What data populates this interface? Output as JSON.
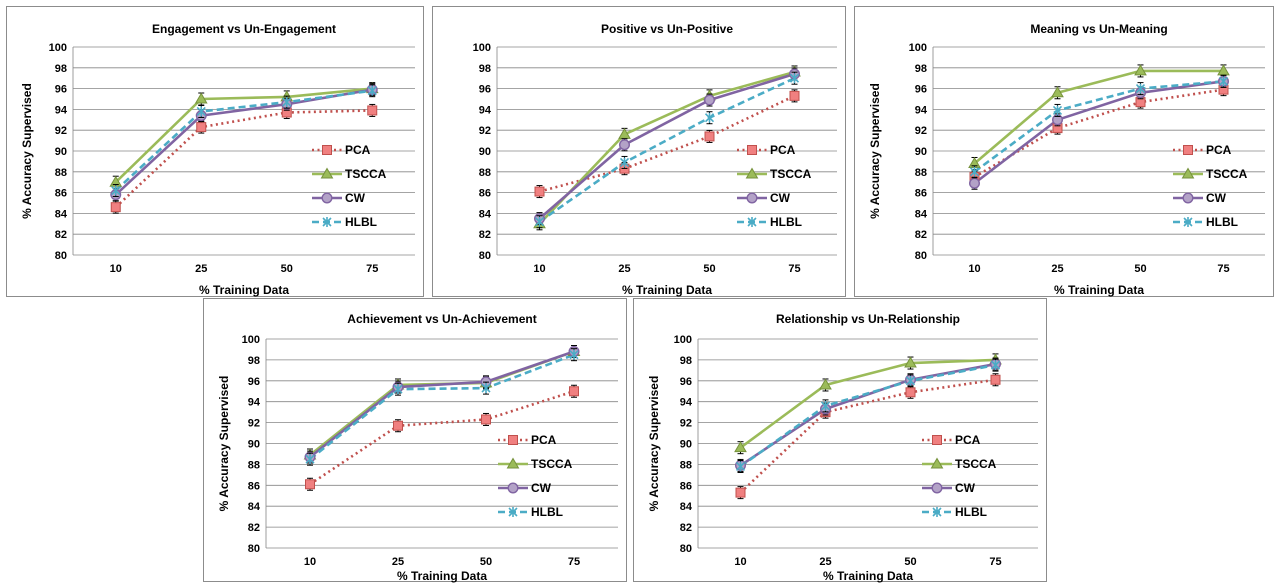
{
  "colors": {
    "PCA": "#c0504d",
    "PCA_marker": "#f08080",
    "TSCCA": "#9bbb59",
    "CW": "#8064a2",
    "CW_marker": "#b3a2c7",
    "HLBL": "#4bacc6",
    "grid": "#868686"
  },
  "chart_data": [
    {
      "type": "line",
      "title": "Engagement vs Un-Engagement",
      "xlabel": "% Training Data",
      "ylabel": "% Accuracy Supervised",
      "categories": [
        "10",
        "25",
        "50",
        "75"
      ],
      "ylim": [
        80,
        100
      ],
      "yticks": [
        80,
        82,
        84,
        86,
        88,
        90,
        92,
        94,
        96,
        98,
        100
      ],
      "grid": true,
      "legend": "right",
      "series": [
        {
          "name": "PCA",
          "values": [
            84.6,
            92.3,
            93.7,
            93.9
          ]
        },
        {
          "name": "TSCCA",
          "values": [
            87.0,
            95.0,
            95.2,
            96.0
          ]
        },
        {
          "name": "CW",
          "values": [
            85.8,
            93.4,
            94.5,
            95.9
          ]
        },
        {
          "name": "HLBL",
          "values": [
            86.2,
            93.8,
            94.7,
            95.8
          ]
        }
      ]
    },
    {
      "type": "line",
      "title": "Positive vs Un-Positive",
      "xlabel": "% Training Data",
      "ylabel": "",
      "categories": [
        "10",
        "25",
        "50",
        "75"
      ],
      "ylim": [
        80,
        100
      ],
      "yticks": [
        80,
        82,
        84,
        86,
        88,
        90,
        92,
        94,
        96,
        98,
        100
      ],
      "grid": true,
      "legend": "right",
      "series": [
        {
          "name": "PCA",
          "values": [
            86.1,
            88.3,
            91.4,
            95.3
          ]
        },
        {
          "name": "TSCCA",
          "values": [
            83.0,
            91.6,
            95.3,
            97.6
          ]
        },
        {
          "name": "CW",
          "values": [
            83.5,
            90.6,
            94.9,
            97.4
          ]
        },
        {
          "name": "HLBL",
          "values": [
            83.2,
            88.9,
            93.2,
            97.0
          ]
        }
      ]
    },
    {
      "type": "line",
      "title": "Meaning vs Un-Meaning",
      "xlabel": "% Training Data",
      "ylabel": "% Accuracy Supervised",
      "categories": [
        "10",
        "25",
        "50",
        "75"
      ],
      "ylim": [
        80,
        100
      ],
      "yticks": [
        80,
        82,
        84,
        86,
        88,
        90,
        92,
        94,
        96,
        98,
        100
      ],
      "grid": true,
      "legend": "right",
      "series": [
        {
          "name": "PCA",
          "values": [
            87.5,
            92.2,
            94.7,
            95.9
          ]
        },
        {
          "name": "TSCCA",
          "values": [
            88.8,
            95.6,
            97.7,
            97.7
          ]
        },
        {
          "name": "CW",
          "values": [
            86.9,
            93.0,
            95.6,
            96.7
          ]
        },
        {
          "name": "HLBL",
          "values": [
            88.0,
            93.9,
            96.0,
            96.7
          ]
        }
      ]
    },
    {
      "type": "line",
      "title": "Achievement vs Un-Achievement",
      "xlabel": "% Training Data",
      "ylabel": "% Accuracy Supervised",
      "categories": [
        "10",
        "25",
        "50",
        "75"
      ],
      "ylim": [
        80,
        100
      ],
      "yticks": [
        80,
        82,
        84,
        86,
        88,
        90,
        92,
        94,
        96,
        98,
        100
      ],
      "grid": true,
      "legend": "right",
      "series": [
        {
          "name": "PCA",
          "values": [
            86.1,
            91.7,
            92.3,
            95.0
          ]
        },
        {
          "name": "TSCCA",
          "values": [
            88.9,
            95.6,
            95.8,
            98.8
          ]
        },
        {
          "name": "CW",
          "values": [
            88.7,
            95.4,
            95.9,
            98.8
          ]
        },
        {
          "name": "HLBL",
          "values": [
            88.5,
            95.2,
            95.3,
            98.5
          ]
        }
      ]
    },
    {
      "type": "line",
      "title": "Relationship vs Un-Relationship",
      "xlabel": "% Training Data",
      "ylabel": "% Accuracy Supervised",
      "categories": [
        "10",
        "25",
        "50",
        "75"
      ],
      "ylim": [
        80,
        100
      ],
      "yticks": [
        80,
        82,
        84,
        86,
        88,
        90,
        92,
        94,
        96,
        98,
        100
      ],
      "grid": true,
      "legend": "right",
      "series": [
        {
          "name": "PCA",
          "values": [
            85.3,
            93.0,
            94.9,
            96.1
          ]
        },
        {
          "name": "TSCCA",
          "values": [
            89.6,
            95.6,
            97.7,
            98.0
          ]
        },
        {
          "name": "CW",
          "values": [
            87.9,
            93.3,
            96.1,
            97.6
          ]
        },
        {
          "name": "HLBL",
          "values": [
            87.8,
            93.6,
            96.0,
            97.5
          ]
        }
      ]
    }
  ]
}
